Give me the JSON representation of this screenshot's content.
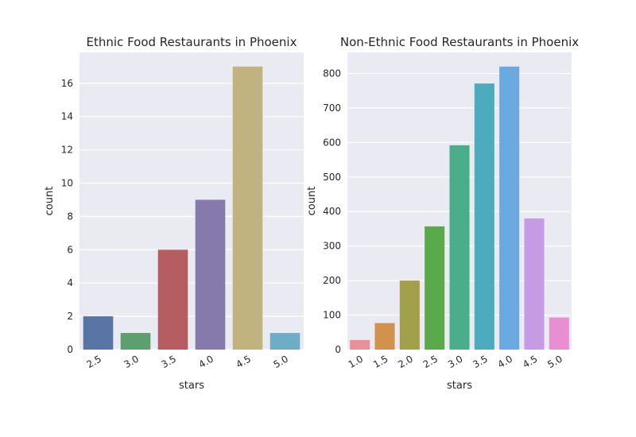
{
  "chart_data": [
    {
      "type": "bar",
      "title": "Ethnic Food Restaurants in Phoenix",
      "xlabel": "stars",
      "ylabel": "count",
      "categories": [
        "2.5",
        "3.0",
        "3.5",
        "4.0",
        "4.5",
        "5.0"
      ],
      "values": [
        2,
        1,
        6,
        9,
        17,
        1
      ],
      "colors": [
        "#5975a4",
        "#5f9e6e",
        "#b55d60",
        "#857aab",
        "#c1b37f",
        "#6eadc3"
      ],
      "ylim": [
        0,
        17.85
      ],
      "yticks": [
        0,
        2,
        4,
        6,
        8,
        10,
        12,
        14,
        16
      ],
      "grid": true
    },
    {
      "type": "bar",
      "title": "Non-Ethnic Food Restaurants in Phoenix",
      "xlabel": "stars",
      "ylabel": "count",
      "categories": [
        "1.0",
        "1.5",
        "2.0",
        "2.5",
        "3.0",
        "3.5",
        "4.0",
        "4.5",
        "5.0"
      ],
      "values": [
        28,
        77,
        200,
        357,
        592,
        771,
        820,
        380,
        93
      ],
      "colors": [
        "#e8909c",
        "#d2924d",
        "#a3a04b",
        "#5aa94b",
        "#4aae8c",
        "#4cabbd",
        "#6aaae0",
        "#c59ce4",
        "#e88fd1"
      ],
      "ylim": [
        0,
        861
      ],
      "yticks": [
        0,
        100,
        200,
        300,
        400,
        500,
        600,
        700,
        800
      ],
      "grid": true
    }
  ]
}
